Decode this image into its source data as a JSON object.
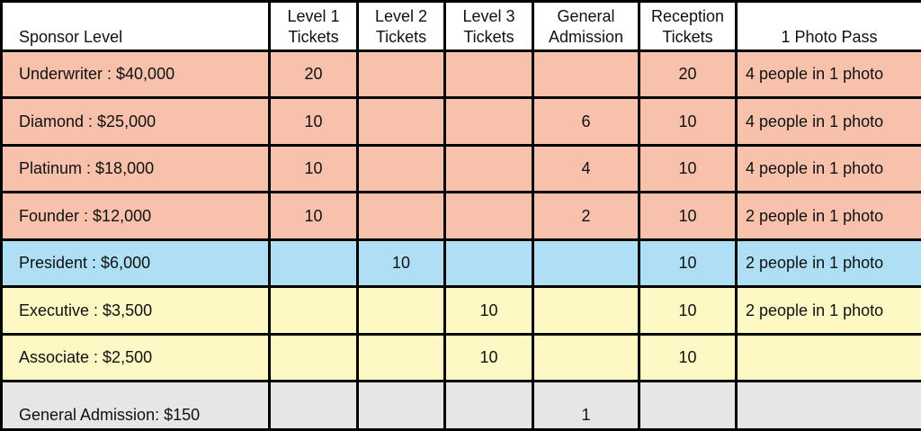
{
  "headers": {
    "sponsor_level": "Sponsor Level",
    "level1": [
      "Level 1",
      "Tickets"
    ],
    "level2": [
      "Level 2",
      "Tickets"
    ],
    "level3": [
      "Level 3",
      "Tickets"
    ],
    "general_admission": [
      "General",
      "Admission"
    ],
    "reception": [
      "Reception",
      "Tickets"
    ],
    "photo_pass": "1 Photo Pass"
  },
  "rows": [
    {
      "level": "Underwriter : $40,000",
      "level1": "20",
      "level2": "",
      "level3": "",
      "general": "",
      "reception": "20",
      "photo": "4 people in 1 photo",
      "color": "#f8c1ac"
    },
    {
      "level": "Diamond : $25,000",
      "level1": "10",
      "level2": "",
      "level3": "",
      "general": "6",
      "reception": "10",
      "photo": "4 people in 1 photo",
      "color": "#f8c1ac"
    },
    {
      "level": "Platinum : $18,000",
      "level1": "10",
      "level2": "",
      "level3": "",
      "general": "4",
      "reception": "10",
      "photo": "4 people in 1 photo",
      "color": "#f8c1ac"
    },
    {
      "level": "Founder : $12,000",
      "level1": "10",
      "level2": "",
      "level3": "",
      "general": "2",
      "reception": "10",
      "photo": "2 people in 1 photo",
      "color": "#f8c1ac"
    },
    {
      "level": "President : $6,000",
      "level1": "",
      "level2": "10",
      "level3": "",
      "general": "",
      "reception": "10",
      "photo": "2 people in 1 photo",
      "color": "#aedff4"
    },
    {
      "level": "Executive : $3,500",
      "level1": "",
      "level2": "",
      "level3": "10",
      "general": "",
      "reception": "10",
      "photo": "2 people in 1 photo",
      "color": "#fef9c4"
    },
    {
      "level": "Associate : $2,500",
      "level1": "",
      "level2": "",
      "level3": "10",
      "general": "",
      "reception": "10",
      "photo": "",
      "color": "#fef9c4"
    },
    {
      "level": "General Admission: $150",
      "level1": "",
      "level2": "",
      "level3": "",
      "general": "1",
      "reception": "",
      "photo": "",
      "color": "#e6e6e6"
    }
  ]
}
